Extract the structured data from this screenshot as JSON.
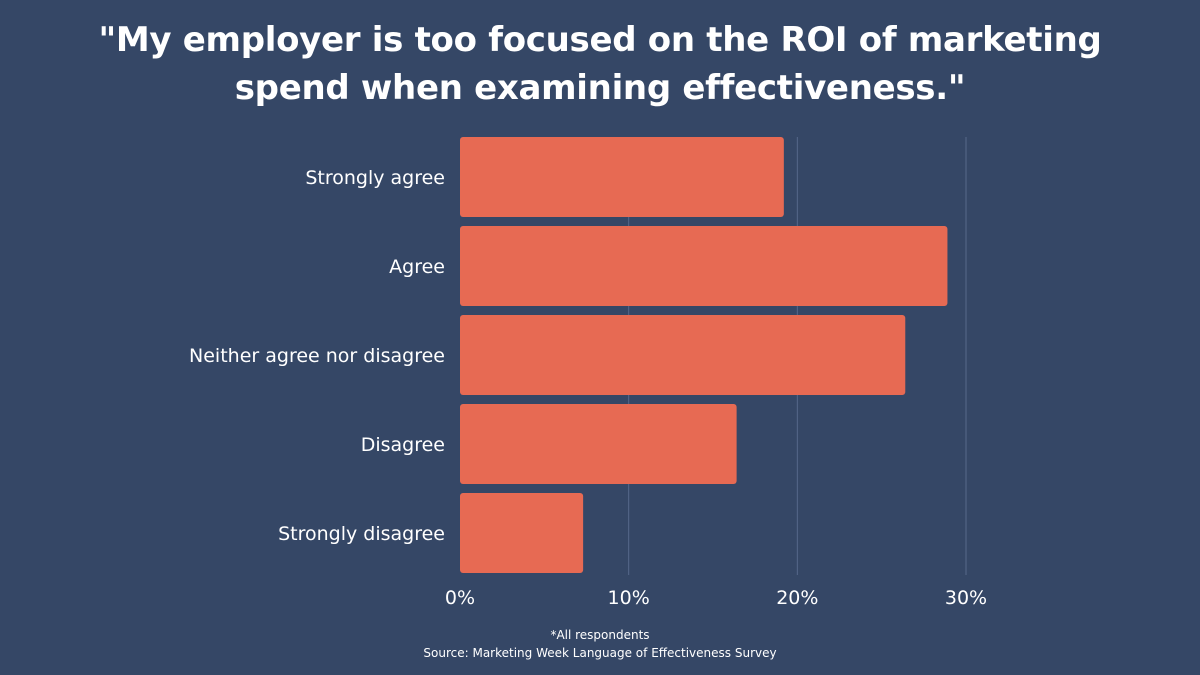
{
  "title_lines": [
    "\"My employer is too focused on the ROI of marketing",
    "spend when examining effectiveness.\""
  ],
  "footnote": "*All respondents",
  "source": "Source: Marketing Week Language of Effectiveness Survey",
  "colors": {
    "background": "#354766",
    "bar": "#E76A53",
    "gridline": "#56688A",
    "text": "#FFFFFF"
  },
  "chart_data": {
    "type": "bar",
    "orientation": "horizontal",
    "title": "\"My employer is too focused on the ROI of marketing spend when examining effectiveness.\"",
    "categories": [
      "Strongly agree",
      "Agree",
      "Neither agree nor disagree",
      "Disagree",
      "Strongly disagree"
    ],
    "values": [
      19.2,
      28.9,
      26.4,
      16.4,
      7.3
    ],
    "unit": "%",
    "xlim": [
      0,
      30
    ],
    "xticks": [
      0,
      10,
      20,
      30
    ],
    "xtick_labels": [
      "0%",
      "10%",
      "20%",
      "30%"
    ],
    "grid": true,
    "xlabel": "",
    "ylabel": ""
  }
}
